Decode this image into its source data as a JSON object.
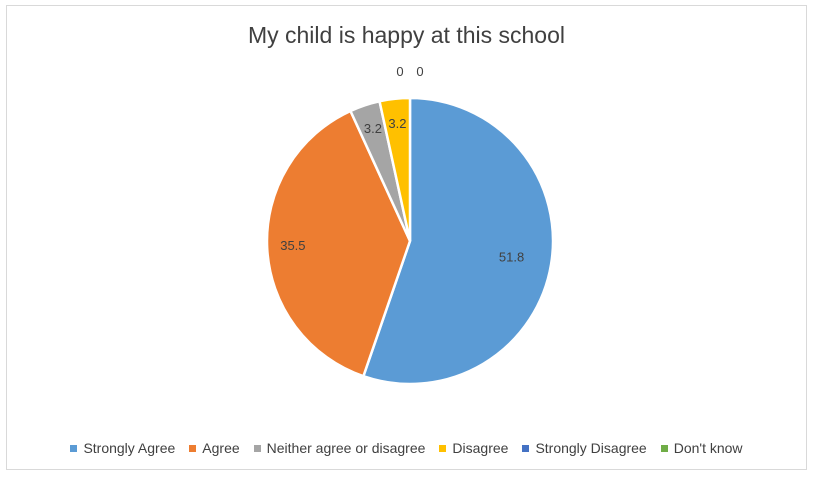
{
  "chart_data": {
    "type": "pie",
    "title": "My child is happy at this school",
    "categories": [
      "Strongly Agree",
      "Agree",
      "Neither agree or disagree",
      "Disagree",
      "Strongly Disagree",
      "Don't know"
    ],
    "values": [
      51.8,
      35.5,
      3.2,
      3.2,
      0,
      0
    ],
    "data_labels": [
      "51.8",
      "35.5",
      "3.2",
      "3.2",
      "0",
      "0"
    ],
    "colors": [
      "#5b9bd5",
      "#ed7d31",
      "#a5a5a5",
      "#ffc000",
      "#4472c4",
      "#70ad47"
    ],
    "legend_position": "bottom"
  }
}
